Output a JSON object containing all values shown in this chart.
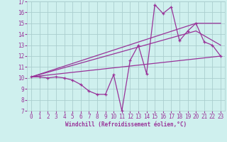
{
  "xlabel": "Windchill (Refroidissement éolien,°C)",
  "xlim": [
    -0.5,
    23.5
  ],
  "ylim": [
    7,
    17
  ],
  "xticks": [
    0,
    1,
    2,
    3,
    4,
    5,
    6,
    7,
    8,
    9,
    10,
    11,
    12,
    13,
    14,
    15,
    16,
    17,
    18,
    19,
    20,
    21,
    22,
    23
  ],
  "yticks": [
    7,
    8,
    9,
    10,
    11,
    12,
    13,
    14,
    15,
    16,
    17
  ],
  "bg_color": "#cff0ee",
  "line_color": "#993399",
  "grid_color": "#aacece",
  "main_series": {
    "x": [
      0,
      1,
      2,
      3,
      4,
      5,
      6,
      7,
      8,
      9,
      10,
      11,
      12,
      13,
      14,
      15,
      16,
      17,
      18,
      19,
      20,
      21,
      22,
      23
    ],
    "y": [
      10.1,
      10.1,
      10.0,
      10.1,
      10.0,
      9.8,
      9.4,
      8.8,
      8.5,
      8.5,
      10.3,
      7.0,
      11.6,
      13.0,
      10.4,
      16.7,
      15.9,
      16.5,
      13.4,
      14.3,
      15.0,
      13.3,
      13.0,
      12.0
    ]
  },
  "trend_lines": [
    {
      "x": [
        0,
        23
      ],
      "y": [
        10.1,
        12.0
      ]
    },
    {
      "x": [
        0,
        20,
        23
      ],
      "y": [
        10.1,
        15.0,
        15.0
      ]
    },
    {
      "x": [
        0,
        20,
        23
      ],
      "y": [
        10.1,
        14.3,
        13.0
      ]
    }
  ]
}
